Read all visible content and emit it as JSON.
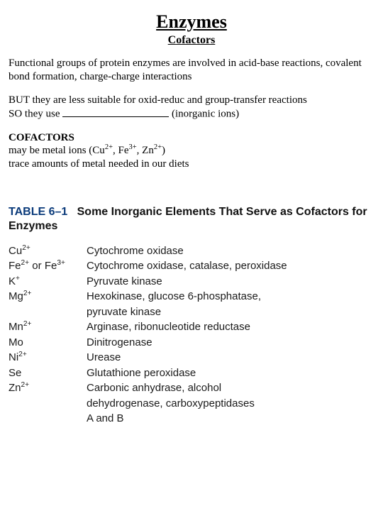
{
  "heading": {
    "title": "Enzymes",
    "subtitle": "Cofactors"
  },
  "para1": "Functional groups of protein enzymes are involved in acid-base reactions, covalent bond formation, charge-charge interactions",
  "para2_a": "BUT they are less suitable for oxid-reduc and group-transfer reactions",
  "para2_b_pre": "SO they use ",
  "para2_b_post": " (inorganic ions)",
  "cofactors_label": "COFACTORS",
  "cofactors_line1": "may be metal ions (Cu",
  "cofactors_ion1_sup": "2+",
  "cofactors_sep1": ", Fe",
  "cofactors_ion2_sup": "3+",
  "cofactors_sep2": ", Zn",
  "cofactors_ion3_sup": "2+",
  "cofactors_line1_end": ")",
  "cofactors_line2": "trace amounts of metal needed in our diets",
  "table": {
    "label": "TABLE 6–1",
    "title": "Some Inorganic Elements That Serve as Cofactors for Enzymes",
    "rows": [
      {
        "ion_base": "Cu",
        "ion_sup": "2+",
        "desc": "Cytochrome oxidase"
      },
      {
        "ion_html": "Fe<sup>2+</sup> or Fe<sup>3+</sup>",
        "desc": "Cytochrome oxidase, catalase, peroxidase"
      },
      {
        "ion_base": "K",
        "ion_sup": "+",
        "desc": "Pyruvate kinase"
      },
      {
        "ion_base": "Mg",
        "ion_sup": "2+",
        "desc": "Hexokinase, glucose 6-phosphatase,",
        "cont": "pyruvate kinase"
      },
      {
        "ion_base": "Mn",
        "ion_sup": "2+",
        "desc": "Arginase, ribonucleotide reductase"
      },
      {
        "ion_base": "Mo",
        "ion_sup": "",
        "desc": "Dinitrogenase"
      },
      {
        "ion_base": "Ni",
        "ion_sup": "2+",
        "desc": "Urease"
      },
      {
        "ion_base": "Se",
        "ion_sup": "",
        "desc": "Glutathione peroxidase"
      },
      {
        "ion_base": "Zn",
        "ion_sup": "2+",
        "desc": "Carbonic anhydrase, alcohol",
        "cont": "dehydrogenase, carboxypeptidases",
        "cont2": "A and B"
      }
    ]
  }
}
